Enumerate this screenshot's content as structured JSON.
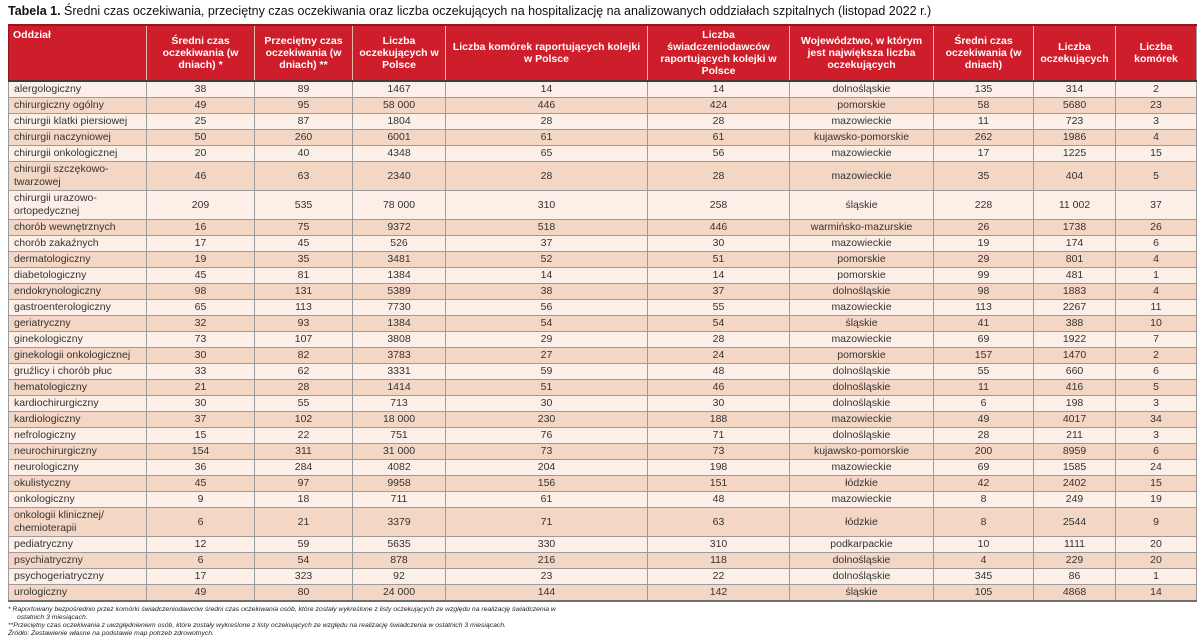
{
  "title": {
    "label": "Tabela 1.",
    "text": " Średni czas oczekiwania, przeciętny czas oczekiwania oraz liczba oczekujących na hospitalizację na analizowanych oddziałach szpitalnych (listopad 2022 r.)"
  },
  "colors": {
    "header_bg": "#ce1e2b",
    "header_text": "#ffffff",
    "row_light": "#fcefe7",
    "row_dark": "#f4d6c5",
    "grid_border": "#9b9b9b"
  },
  "table": {
    "columns": [
      "Oddział",
      "Średni czas oczekiwania (w dniach) *",
      "Przeciętny czas oczekiwania (w dniach) **",
      "Liczba oczekujących w Polsce",
      "Liczba komórek raportujących kolejki w Polsce",
      "Liczba świadczeniodawców raportujących kolejki w Polsce",
      "Województwo, w którym jest największa liczba oczekujących",
      "Średni czas oczekiwania (w dniach)",
      "Liczba oczekujących",
      "Liczba komórek"
    ],
    "rows": [
      [
        "alergologiczny",
        "38",
        "89",
        "1467",
        "14",
        "14",
        "dolnośląskie",
        "135",
        "314",
        "2"
      ],
      [
        "chirurgiczny ogólny",
        "49",
        "95",
        "58 000",
        "446",
        "424",
        "pomorskie",
        "58",
        "5680",
        "23"
      ],
      [
        "chirurgii klatki piersiowej",
        "25",
        "87",
        "1804",
        "28",
        "28",
        "mazowieckie",
        "11",
        "723",
        "3"
      ],
      [
        "chirurgii naczyniowej",
        "50",
        "260",
        "6001",
        "61",
        "61",
        "kujawsko-pomorskie",
        "262",
        "1986",
        "4"
      ],
      [
        "chirurgii onkologicznej",
        "20",
        "40",
        "4348",
        "65",
        "56",
        "mazowieckie",
        "17",
        "1225",
        "15"
      ],
      [
        "chirurgii szczękowo-twarzowej",
        "46",
        "63",
        "2340",
        "28",
        "28",
        "mazowieckie",
        "35",
        "404",
        "5"
      ],
      [
        "chirurgii urazowo-ortopedycznej",
        "209",
        "535",
        "78 000",
        "310",
        "258",
        "śląskie",
        "228",
        "11 002",
        "37"
      ],
      [
        "chorób wewnętrznych",
        "16",
        "75",
        "9372",
        "518",
        "446",
        "warmińsko-mazurskie",
        "26",
        "1738",
        "26"
      ],
      [
        "chorób zakaźnych",
        "17",
        "45",
        "526",
        "37",
        "30",
        "mazowieckie",
        "19",
        "174",
        "6"
      ],
      [
        "dermatologiczny",
        "19",
        "35",
        "3481",
        "52",
        "51",
        "pomorskie",
        "29",
        "801",
        "4"
      ],
      [
        "diabetologiczny",
        "45",
        "81",
        "1384",
        "14",
        "14",
        "pomorskie",
        "99",
        "481",
        "1"
      ],
      [
        "endokrynologiczny",
        "98",
        "131",
        "5389",
        "38",
        "37",
        "dolnośląskie",
        "98",
        "1883",
        "4"
      ],
      [
        "gastroenterologiczny",
        "65",
        "113",
        "7730",
        "56",
        "55",
        "mazowieckie",
        "113",
        "2267",
        "11"
      ],
      [
        "geriatryczny",
        "32",
        "93",
        "1384",
        "54",
        "54",
        "śląskie",
        "41",
        "388",
        "10"
      ],
      [
        "ginekologiczny",
        "73",
        "107",
        "3808",
        "29",
        "28",
        "mazowieckie",
        "69",
        "1922",
        "7"
      ],
      [
        "ginekologii onkologicznej",
        "30",
        "82",
        "3783",
        "27",
        "24",
        "pomorskie",
        "157",
        "1470",
        "2"
      ],
      [
        "gruźlicy i chorób płuc",
        "33",
        "62",
        "3331",
        "59",
        "48",
        "dolnośląskie",
        "55",
        "660",
        "6"
      ],
      [
        "hematologiczny",
        "21",
        "28",
        "1414",
        "51",
        "46",
        "dolnośląskie",
        "11",
        "416",
        "5"
      ],
      [
        "kardiochirurgiczny",
        "30",
        "55",
        "713",
        "30",
        "30",
        "dolnośląskie",
        "6",
        "198",
        "3"
      ],
      [
        "kardiologiczny",
        "37",
        "102",
        "18 000",
        "230",
        "188",
        "mazowieckie",
        "49",
        "4017",
        "34"
      ],
      [
        "nefrologiczny",
        "15",
        "22",
        "751",
        "76",
        "71",
        "dolnośląskie",
        "28",
        "211",
        "3"
      ],
      [
        "neurochirurgiczny",
        "154",
        "311",
        "31 000",
        "73",
        "73",
        "kujawsko-pomorskie",
        "200",
        "8959",
        "6"
      ],
      [
        "neurologiczny",
        "36",
        "284",
        "4082",
        "204",
        "198",
        "mazowieckie",
        "69",
        "1585",
        "24"
      ],
      [
        "okulistyczny",
        "45",
        "97",
        "9958",
        "156",
        "151",
        "łódzkie",
        "42",
        "2402",
        "15"
      ],
      [
        "onkologiczny",
        "9",
        "18",
        "711",
        "61",
        "48",
        "mazowieckie",
        "8",
        "249",
        "19"
      ],
      [
        "onkologii klinicznej/\nchemioterapii",
        "6",
        "21",
        "3379",
        "71",
        "63",
        "łódzkie",
        "8",
        "2544",
        "9"
      ],
      [
        "pediatryczny",
        "12",
        "59",
        "5635",
        "330",
        "310",
        "podkarpackie",
        "10",
        "1111",
        "20"
      ],
      [
        "psychiatryczny",
        "6",
        "54",
        "878",
        "216",
        "118",
        "dolnośląskie",
        "4",
        "229",
        "20"
      ],
      [
        "psychogeriatryczny",
        "17",
        "323",
        "92",
        "23",
        "22",
        "dolnośląskie",
        "345",
        "86",
        "1"
      ],
      [
        "urologiczny",
        "49",
        "80",
        "24 000",
        "144",
        "142",
        "śląskie",
        "105",
        "4868",
        "14"
      ]
    ]
  },
  "footnotes": [
    "* Raportowany bezpośrednio przez komórki świadczeniodawców średni czas oczekiwania osób, które zostały wykreślone z listy oczekujących ze względu na realizację świadczenia w  ostatnich  3 miesiącach.",
    "**Przeciętny czas oczekiwania z uwzględnieniem osób,  które zostały wykreślone z listy oczekujących ze względu na realizację świadczenia w  ostatnich  3 miesiącach.",
    "Źródło: Zestawienie własne na podstawie map potrzeb zdrowotnych."
  ]
}
